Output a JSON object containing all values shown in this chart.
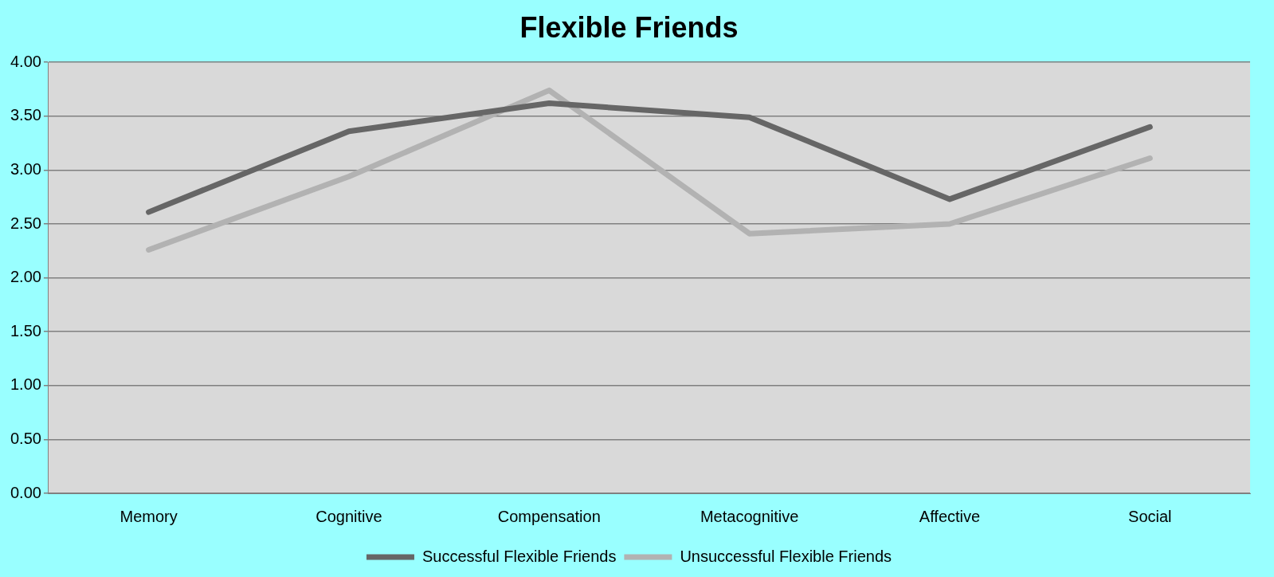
{
  "chart_data": {
    "type": "line",
    "title": "Flexible Friends",
    "categories": [
      "Memory",
      "Cognitive",
      "Compensation",
      "Metacognitive",
      "Affective",
      "Social"
    ],
    "series": [
      {
        "name": "Successful Flexible Friends",
        "color": "#666666",
        "values": [
          2.61,
          3.36,
          3.62,
          3.49,
          2.73,
          3.4
        ]
      },
      {
        "name": "Unsuccessful Flexible Friends",
        "color": "#b2b2b2",
        "values": [
          2.26,
          2.94,
          3.74,
          2.41,
          2.5,
          3.11
        ]
      }
    ],
    "ylim": [
      0,
      4
    ],
    "yticks": [
      {
        "value": 0,
        "label": "0.00"
      },
      {
        "value": 0.5,
        "label": "0.50"
      },
      {
        "value": 1,
        "label": "1.00"
      },
      {
        "value": 1.5,
        "label": "1.50"
      },
      {
        "value": 2,
        "label": "2.00"
      },
      {
        "value": 2.5,
        "label": "2.50"
      },
      {
        "value": 3,
        "label": "3.00"
      },
      {
        "value": 3.5,
        "label": "3.50"
      },
      {
        "value": 4,
        "label": "4.00"
      }
    ],
    "grid": "y",
    "legend": "bottom",
    "marker": "none",
    "line_style": "solid"
  }
}
